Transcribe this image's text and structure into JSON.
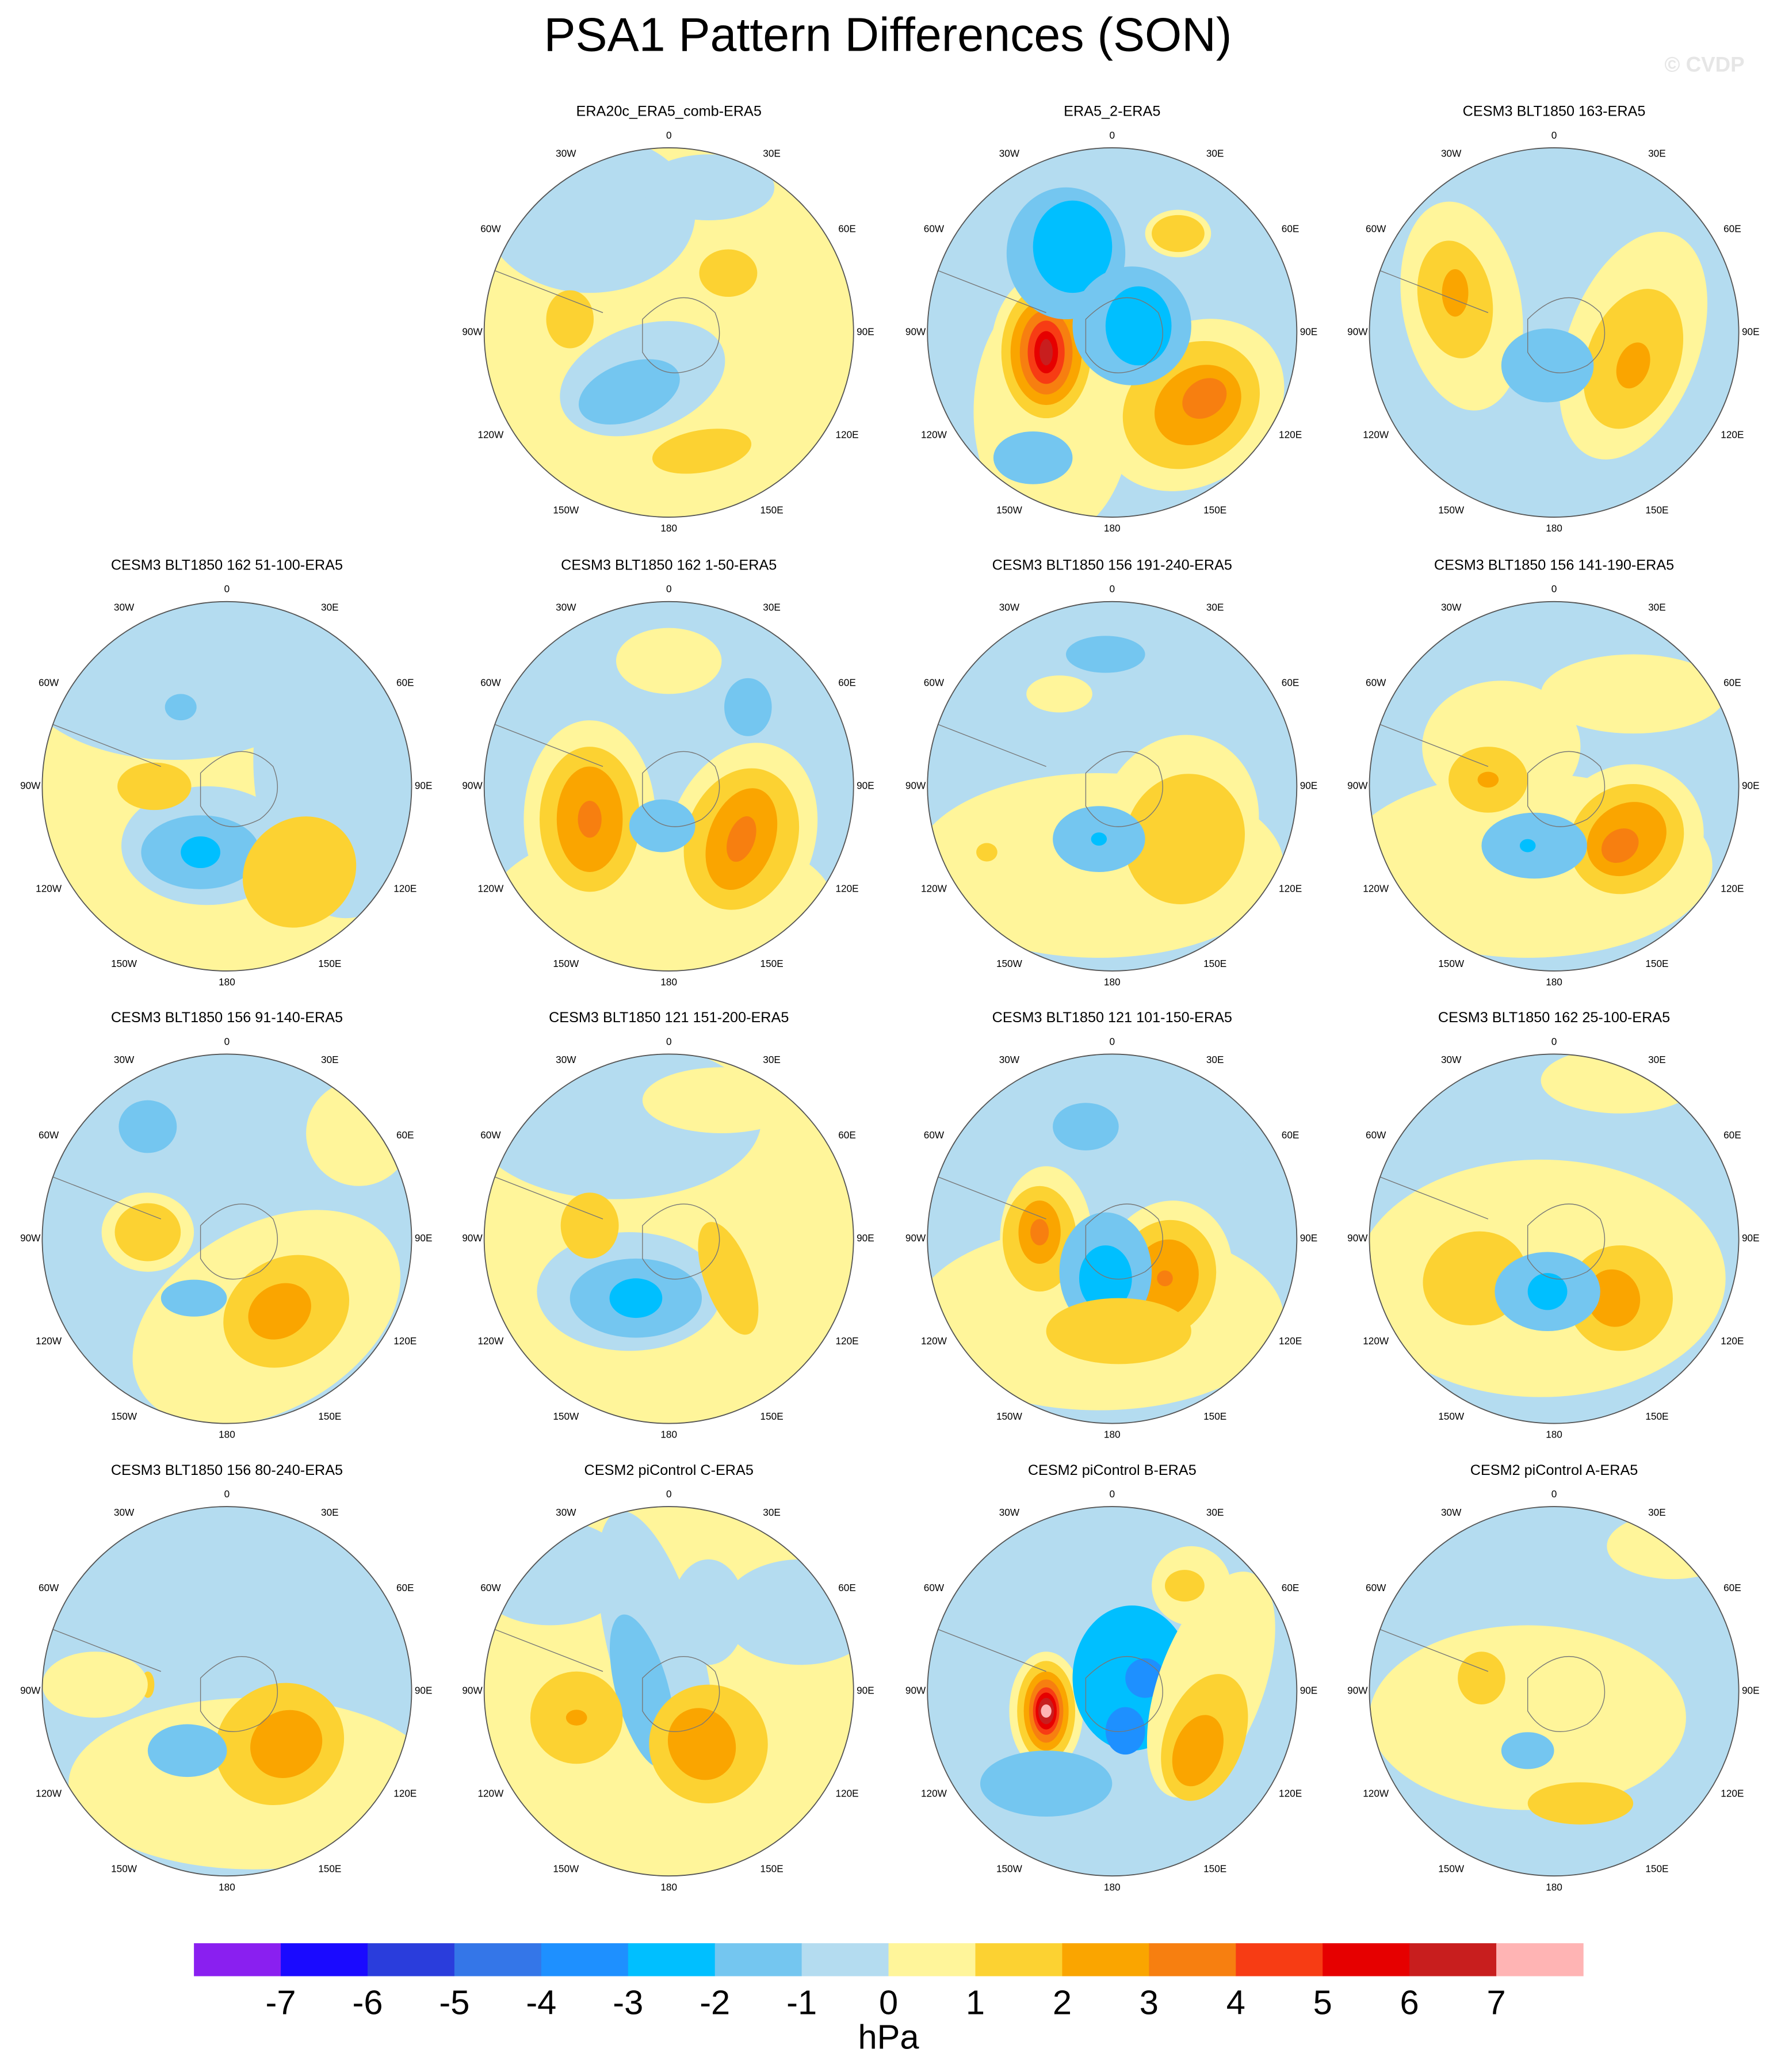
{
  "chart_data": {
    "type": "polar-map",
    "title": "PSA1 Pattern Differences (SON)",
    "watermark": "© CVDP",
    "longitudes": [
      "0",
      "30E",
      "60E",
      "90E",
      "120E",
      "150E",
      "180",
      "150W",
      "120W",
      "90W",
      "60W",
      "30W"
    ],
    "panels": [
      {
        "title": "ERA20c_ERA5_comb-ERA5"
      },
      {
        "title": "ERA5_2-ERA5"
      },
      {
        "title": "CESM3 BLT1850 163-ERA5"
      },
      {
        "title": "CESM3 BLT1850 162 51-100-ERA5"
      },
      {
        "title": "CESM3 BLT1850 162 1-50-ERA5"
      },
      {
        "title": "CESM3 BLT1850 156 191-240-ERA5"
      },
      {
        "title": "CESM3 BLT1850 156 141-190-ERA5"
      },
      {
        "title": "CESM3 BLT1850 156 91-140-ERA5"
      },
      {
        "title": "CESM3 BLT1850 121 151-200-ERA5"
      },
      {
        "title": "CESM3 BLT1850 121 101-150-ERA5"
      },
      {
        "title": "CESM3 BLT1850 162 25-100-ERA5"
      },
      {
        "title": "CESM3 BLT1850 156 80-240-ERA5"
      },
      {
        "title": "CESM2 piControl C-ERA5"
      },
      {
        "title": "CESM2 piControl B-ERA5"
      },
      {
        "title": "CESM2 piControl A-ERA5"
      }
    ],
    "colorbar": {
      "colors": [
        "#8a1ff0",
        "#1a0aff",
        "#2a3ddc",
        "#3476e8",
        "#1e90ff",
        "#00bfff",
        "#74c6f0",
        "#b4dcf0",
        "#fff59a",
        "#fcd232",
        "#faa500",
        "#f77f10",
        "#f73c14",
        "#e60000",
        "#c81e1e",
        "#ffb4b4"
      ],
      "ticks": [
        -7,
        -6,
        -5,
        -4,
        -3,
        -2,
        -1,
        0,
        1,
        2,
        3,
        4,
        5,
        6,
        7
      ],
      "label": "hPa"
    }
  }
}
